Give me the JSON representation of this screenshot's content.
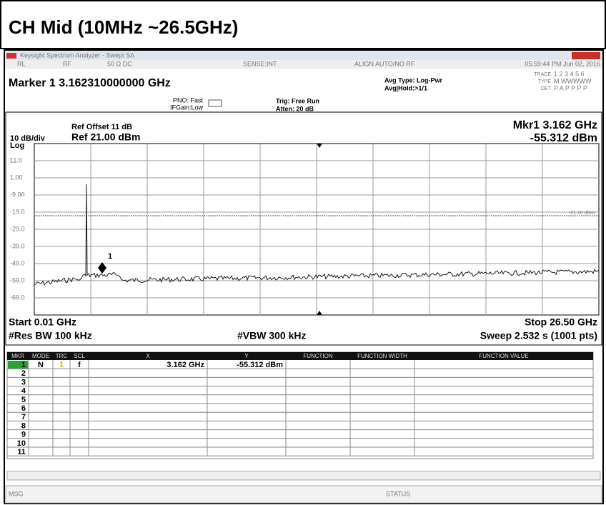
{
  "header": {
    "title": "CH Mid  (10MHz ~26.5GHz)"
  },
  "window": {
    "title": "Keysight Spectrum Analyzer - Swept SA"
  },
  "status_bar": [
    "RL",
    "RF",
    "50 Ω  DC",
    "SENSE:INT",
    "ALIGN AUTO/NO RF",
    "05:59:44 PM Jun 02, 2016"
  ],
  "marker_readout": "Marker 1 3.162310000000 GHz",
  "settings": {
    "pno": "PNO: Fast",
    "ifgain": "IFGain:Low",
    "trig": "Trig: Free Run",
    "atten": "Atten: 20 dB",
    "avg_type": "Avg Type: Log-Pwr",
    "avg_hold": "Avg|Hold:>1/1"
  },
  "trace_info": {
    "trace_label": "TRACE",
    "trace": "1 2 3 4 5 6",
    "type_label": "TYPE",
    "type": "M WWWWW",
    "det_label": "DET",
    "det": "P A P P P P"
  },
  "display": {
    "ref_offset": "Ref Offset 11 dB",
    "scale": "10 dB/div",
    "ref_level": "Ref 21.00 dBm",
    "log": "Log",
    "mkr_freq": "Mkr1 3.162 GHz",
    "mkr_amp": "-55.312 dBm",
    "y_labels": [
      "11.0",
      "1.00",
      "-9.00",
      "-19.0",
      "-29.0",
      "-39.0",
      "-49.0",
      "-59.0",
      "-69.0"
    ],
    "display_line": "-21.10 dBm",
    "marker_label": "1",
    "start": "Start 0.01 GHz",
    "stop": "Stop 26.50 GHz",
    "res_bw": "#Res BW 100 kHz",
    "vbw": "#VBW 300 kHz",
    "sweep": "Sweep  2.532 s (1001 pts)"
  },
  "table": {
    "headers": [
      "MKR",
      "MODE",
      "TRC",
      "SCL",
      "X",
      "Y",
      "FUNCTION",
      "FUNCTION WIDTH",
      "FUNCTION VALUE"
    ],
    "rows": [
      [
        "1",
        "N",
        "1",
        "f",
        "3.162 GHz",
        "-55.312 dBm"
      ],
      [
        "2"
      ],
      [
        "3"
      ],
      [
        "4"
      ],
      [
        "5"
      ],
      [
        "6"
      ],
      [
        "7"
      ],
      [
        "8"
      ],
      [
        "9"
      ],
      [
        "10"
      ],
      [
        "11"
      ]
    ]
  },
  "footer": {
    "msg": "MSG",
    "status": "STATUS"
  }
}
